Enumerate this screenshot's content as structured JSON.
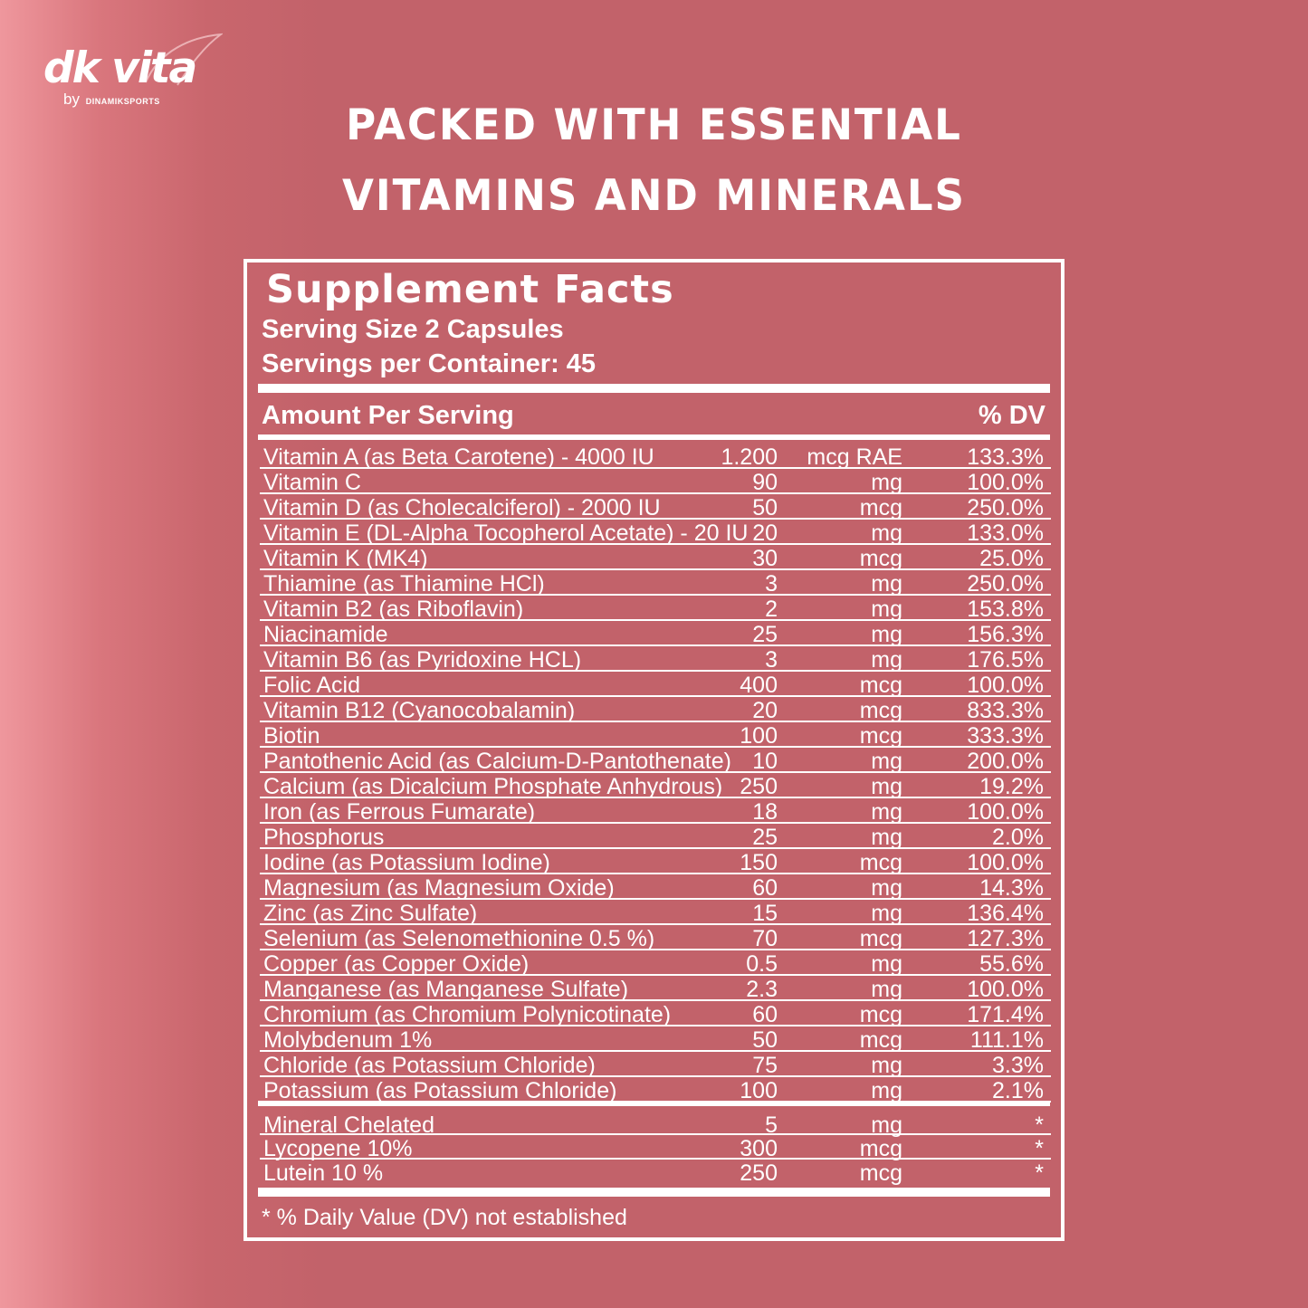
{
  "logo": {
    "wordmark": "dk vita",
    "by": "by",
    "brand": "DINAMIKSPORTS"
  },
  "headline": {
    "line1": "PACKED WITH ESSENTIAL",
    "line2": "VITAMINS AND MINERALS"
  },
  "facts": {
    "title": "Supplement Facts",
    "serving_size": "Serving Size 2 Capsules",
    "servings_per_container": "Servings per Container: 45",
    "amount_header": "Amount Per Serving",
    "dv_header": "% DV",
    "rows": [
      {
        "name": "Vitamin A (as Beta Carotene)  - 4000 IU",
        "amount": "1.200",
        "unit": "mcg RAE",
        "dv": "133.3%"
      },
      {
        "name": "Vitamin C",
        "amount": "90",
        "unit": "mg",
        "dv": "100.0%"
      },
      {
        "name": "Vitamin D (as Cholecalciferol) - 2000 IU",
        "amount": "50",
        "unit": "mcg",
        "dv": "250.0%"
      },
      {
        "name": "Vitamin E (DL-Alpha Tocopherol Acetate) - 20 IU",
        "amount": "20",
        "unit": "mg",
        "dv": "133.0%"
      },
      {
        "name": "Vitamin K (MK4)",
        "amount": "30",
        "unit": "mcg",
        "dv": "25.0%"
      },
      {
        "name": "Thiamine (as Thiamine HCl)",
        "amount": "3",
        "unit": "mg",
        "dv": "250.0%"
      },
      {
        "name": "Vitamin B2 (as Riboflavin)",
        "amount": "2",
        "unit": "mg",
        "dv": "153.8%"
      },
      {
        "name": "Niacinamide",
        "amount": "25",
        "unit": "mg",
        "dv": "156.3%"
      },
      {
        "name": "Vitamin B6 (as Pyridoxine HCL)",
        "amount": "3",
        "unit": "mg",
        "dv": "176.5%"
      },
      {
        "name": "Folic Acid",
        "amount": "400",
        "unit": "mcg",
        "dv": "100.0%"
      },
      {
        "name": "Vitamin B12 (Cyanocobalamin)",
        "amount": "20",
        "unit": "mcg",
        "dv": "833.3%"
      },
      {
        "name": "Biotin",
        "amount": "100",
        "unit": "mcg",
        "dv": "333.3%"
      },
      {
        "name": "Pantothenic Acid (as Calcium-D-Pantothenate)",
        "amount": "10",
        "unit": "mg",
        "dv": "200.0%"
      },
      {
        "name": "Calcium (as Dicalcium Phosphate Anhydrous)",
        "amount": "250",
        "unit": "mg",
        "dv": "19.2%"
      },
      {
        "name": "Iron (as Ferrous Fumarate)",
        "amount": "18",
        "unit": "mg",
        "dv": "100.0%"
      },
      {
        "name": "Phosphorus",
        "amount": "25",
        "unit": "mg",
        "dv": "2.0%"
      },
      {
        "name": "Iodine (as Potassium Iodine)",
        "amount": "150",
        "unit": "mcg",
        "dv": "100.0%"
      },
      {
        "name": "Magnesium (as Magnesium Oxide)",
        "amount": "60",
        "unit": "mg",
        "dv": "14.3%"
      },
      {
        "name": "Zinc (as Zinc Sulfate)",
        "amount": "15",
        "unit": "mg",
        "dv": "136.4%"
      },
      {
        "name": "Selenium (as Selenomethionine 0.5 %)",
        "amount": "70",
        "unit": "mcg",
        "dv": "127.3%"
      },
      {
        "name": "Copper (as Copper Oxide)",
        "amount": "0.5",
        "unit": "mg",
        "dv": "55.6%"
      },
      {
        "name": "Manganese (as Manganese Sulfate)",
        "amount": "2.3",
        "unit": "mg",
        "dv": "100.0%"
      },
      {
        "name": "Chromium (as Chromium Polynicotinate)",
        "amount": "60",
        "unit": "mcg",
        "dv": "171.4%"
      },
      {
        "name": "Molybdenum 1%",
        "amount": "50",
        "unit": "mcg",
        "dv": "111.1%"
      },
      {
        "name": "Chloride (as Potassium Chloride)",
        "amount": "75",
        "unit": "mg",
        "dv": "3.3%"
      },
      {
        "name": "Potassium (as Potassium Chloride)",
        "amount": "100",
        "unit": "mg",
        "dv": "2.1%"
      }
    ],
    "extra_rows": [
      {
        "name": "Mineral Chelated",
        "amount": "5",
        "unit": "mg",
        "dv": "*"
      },
      {
        "name": "Lycopene 10%",
        "amount": "300",
        "unit": "mcg",
        "dv": "*"
      },
      {
        "name": "Lutein 10 %",
        "amount": "250",
        "unit": "mcg",
        "dv": "*"
      }
    ],
    "footnote": "* % Daily Value (DV)  not established"
  }
}
